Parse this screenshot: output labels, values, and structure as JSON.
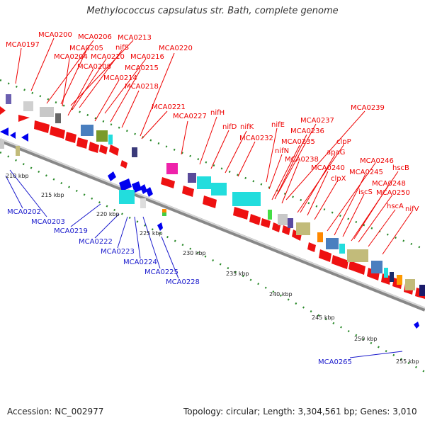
{
  "title": "Methylococcus capsulatus str. Bath, complete genome",
  "accession_text": "Accession: NC_002977",
  "summary_text": "Topology: circular; Length: 3,304,561 bp; Genes: 3,010",
  "colors": {
    "forward_label": "#ee0000",
    "reverse_label": "#1a1acc",
    "forward_gene": "#ee0000",
    "reverse_gene": "#0000ee",
    "backbone": "#999999",
    "tick": "#228822"
  },
  "tick_labels": [
    "210 kbp",
    "215 kbp",
    "220 kbp",
    "225 kbp",
    "230 kbp",
    "235 kbp",
    "240 kbp",
    "245 kbp",
    "250 kbp",
    "255 kbp"
  ],
  "forward_labels": [
    "MCA0197",
    "MCA0200",
    "MCA0206",
    "MCA0213",
    "nifS",
    "MCA0205",
    "MCA0204",
    "MCA0210",
    "MCA0216",
    "MCA0220",
    "MCA0208",
    "MCA0215",
    "MCA0214",
    "MCA0218",
    "MCA0221",
    "MCA0227",
    "nifH",
    "nifD",
    "nifK",
    "nifE",
    "MCA0232",
    "MCA0239",
    "MCA0237",
    "MCA0236",
    "MCA0235",
    "nifN",
    "MCA0238",
    "clpP",
    "apaG",
    "MCA0240",
    "clpX",
    "MCA0246",
    "MCA0245",
    "hscB",
    "MCA0248",
    "iscS",
    "MCA0250",
    "hscA",
    "nifV"
  ],
  "reverse_labels": [
    "MCA0202",
    "MCA0203",
    "MCA0219",
    "MCA0222",
    "MCA0223",
    "MCA0224",
    "MCA0225",
    "MCA0228",
    "MCA0265"
  ]
}
